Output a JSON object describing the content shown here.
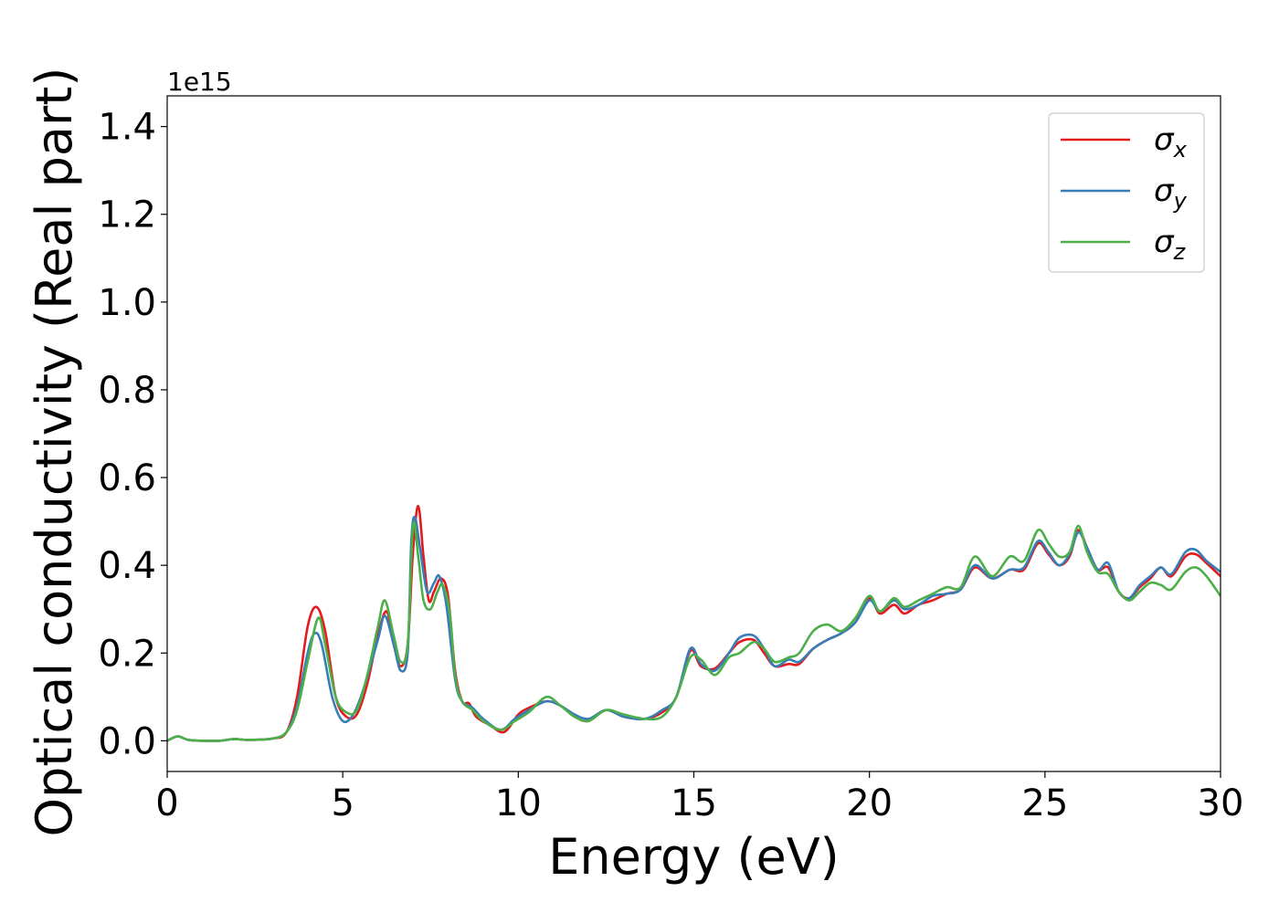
{
  "chart_data": {
    "type": "line",
    "title": "",
    "xlabel": "Energy (eV)",
    "ylabel": "Optical conductivity (Real part)",
    "y_offset_label": "1e15",
    "xlim": [
      0,
      30
    ],
    "ylim": [
      -0.07,
      1.47
    ],
    "x_ticks": [
      0,
      5,
      10,
      15,
      20,
      25,
      30
    ],
    "x_tick_labels": [
      "0",
      "5",
      "10",
      "15",
      "20",
      "25",
      "30"
    ],
    "y_ticks": [
      0.0,
      0.2,
      0.4,
      0.6,
      0.8,
      1.0,
      1.2,
      1.4
    ],
    "y_tick_labels": [
      "0.0",
      "0.2",
      "0.4",
      "0.6",
      "0.8",
      "1.0",
      "1.2",
      "1.4"
    ],
    "grid": false,
    "legend_position": "top-right",
    "series": [
      {
        "name": "σx",
        "label_base": "σ",
        "label_sub": "x",
        "color": "#e41a1c",
        "points": [
          [
            0,
            0.0
          ],
          [
            0.3,
            0.01
          ],
          [
            0.6,
            0.002
          ],
          [
            1.0,
            0.0
          ],
          [
            1.5,
            0.0
          ],
          [
            1.9,
            0.004
          ],
          [
            2.3,
            0.002
          ],
          [
            3.0,
            0.005
          ],
          [
            3.4,
            0.02
          ],
          [
            3.7,
            0.1
          ],
          [
            4.0,
            0.26
          ],
          [
            4.25,
            0.305
          ],
          [
            4.5,
            0.25
          ],
          [
            4.8,
            0.1
          ],
          [
            5.1,
            0.055
          ],
          [
            5.4,
            0.06
          ],
          [
            5.7,
            0.13
          ],
          [
            6.0,
            0.24
          ],
          [
            6.25,
            0.295
          ],
          [
            6.45,
            0.22
          ],
          [
            6.65,
            0.17
          ],
          [
            6.85,
            0.22
          ],
          [
            7.0,
            0.43
          ],
          [
            7.15,
            0.535
          ],
          [
            7.3,
            0.42
          ],
          [
            7.45,
            0.32
          ],
          [
            7.6,
            0.34
          ],
          [
            7.8,
            0.37
          ],
          [
            8.0,
            0.33
          ],
          [
            8.2,
            0.16
          ],
          [
            8.4,
            0.09
          ],
          [
            8.6,
            0.085
          ],
          [
            8.8,
            0.055
          ],
          [
            9.2,
            0.035
          ],
          [
            9.6,
            0.02
          ],
          [
            10.0,
            0.06
          ],
          [
            10.3,
            0.075
          ],
          [
            10.8,
            0.09
          ],
          [
            11.2,
            0.08
          ],
          [
            11.6,
            0.055
          ],
          [
            12.0,
            0.045
          ],
          [
            12.5,
            0.07
          ],
          [
            13.0,
            0.055
          ],
          [
            13.6,
            0.05
          ],
          [
            14.1,
            0.065
          ],
          [
            14.5,
            0.1
          ],
          [
            14.9,
            0.205
          ],
          [
            15.2,
            0.17
          ],
          [
            15.6,
            0.165
          ],
          [
            16.0,
            0.2
          ],
          [
            16.3,
            0.225
          ],
          [
            16.7,
            0.23
          ],
          [
            17.0,
            0.2
          ],
          [
            17.3,
            0.17
          ],
          [
            17.7,
            0.175
          ],
          [
            18.0,
            0.175
          ],
          [
            18.4,
            0.21
          ],
          [
            18.8,
            0.23
          ],
          [
            19.2,
            0.245
          ],
          [
            19.6,
            0.27
          ],
          [
            20.0,
            0.325
          ],
          [
            20.3,
            0.29
          ],
          [
            20.7,
            0.31
          ],
          [
            21.0,
            0.29
          ],
          [
            21.4,
            0.31
          ],
          [
            21.8,
            0.32
          ],
          [
            22.2,
            0.335
          ],
          [
            22.6,
            0.345
          ],
          [
            23.0,
            0.395
          ],
          [
            23.5,
            0.37
          ],
          [
            24.0,
            0.39
          ],
          [
            24.4,
            0.39
          ],
          [
            24.8,
            0.45
          ],
          [
            25.1,
            0.425
          ],
          [
            25.4,
            0.4
          ],
          [
            25.7,
            0.42
          ],
          [
            25.95,
            0.48
          ],
          [
            26.2,
            0.44
          ],
          [
            26.5,
            0.39
          ],
          [
            26.8,
            0.395
          ],
          [
            27.1,
            0.34
          ],
          [
            27.4,
            0.325
          ],
          [
            27.7,
            0.35
          ],
          [
            28.0,
            0.37
          ],
          [
            28.3,
            0.395
          ],
          [
            28.6,
            0.375
          ],
          [
            29.0,
            0.42
          ],
          [
            29.3,
            0.425
          ],
          [
            29.6,
            0.405
          ],
          [
            30.0,
            0.375
          ]
        ]
      },
      {
        "name": "σy",
        "label_base": "σ",
        "label_sub": "y",
        "color": "#377eb8",
        "points": [
          [
            0,
            0.0
          ],
          [
            0.3,
            0.01
          ],
          [
            0.6,
            0.002
          ],
          [
            1.0,
            0.0
          ],
          [
            1.5,
            0.0
          ],
          [
            1.9,
            0.004
          ],
          [
            2.3,
            0.002
          ],
          [
            3.0,
            0.005
          ],
          [
            3.4,
            0.02
          ],
          [
            3.7,
            0.08
          ],
          [
            4.0,
            0.2
          ],
          [
            4.2,
            0.245
          ],
          [
            4.4,
            0.22
          ],
          [
            4.7,
            0.1
          ],
          [
            5.0,
            0.045
          ],
          [
            5.3,
            0.06
          ],
          [
            5.6,
            0.12
          ],
          [
            6.0,
            0.23
          ],
          [
            6.2,
            0.285
          ],
          [
            6.45,
            0.22
          ],
          [
            6.65,
            0.16
          ],
          [
            6.85,
            0.2
          ],
          [
            6.95,
            0.45
          ],
          [
            7.05,
            0.51
          ],
          [
            7.2,
            0.44
          ],
          [
            7.4,
            0.34
          ],
          [
            7.6,
            0.36
          ],
          [
            7.75,
            0.375
          ],
          [
            7.95,
            0.31
          ],
          [
            8.2,
            0.14
          ],
          [
            8.4,
            0.09
          ],
          [
            8.7,
            0.075
          ],
          [
            9.0,
            0.05
          ],
          [
            9.5,
            0.025
          ],
          [
            9.9,
            0.05
          ],
          [
            10.3,
            0.07
          ],
          [
            10.8,
            0.09
          ],
          [
            11.2,
            0.08
          ],
          [
            11.6,
            0.06
          ],
          [
            12.0,
            0.05
          ],
          [
            12.5,
            0.07
          ],
          [
            13.0,
            0.055
          ],
          [
            13.6,
            0.05
          ],
          [
            14.1,
            0.07
          ],
          [
            14.5,
            0.1
          ],
          [
            14.9,
            0.21
          ],
          [
            15.2,
            0.175
          ],
          [
            15.6,
            0.16
          ],
          [
            16.0,
            0.2
          ],
          [
            16.3,
            0.235
          ],
          [
            16.7,
            0.24
          ],
          [
            17.0,
            0.21
          ],
          [
            17.3,
            0.17
          ],
          [
            17.7,
            0.185
          ],
          [
            18.0,
            0.18
          ],
          [
            18.4,
            0.21
          ],
          [
            18.8,
            0.23
          ],
          [
            19.2,
            0.245
          ],
          [
            19.6,
            0.27
          ],
          [
            20.0,
            0.32
          ],
          [
            20.3,
            0.295
          ],
          [
            20.7,
            0.32
          ],
          [
            21.0,
            0.3
          ],
          [
            21.4,
            0.31
          ],
          [
            21.8,
            0.33
          ],
          [
            22.2,
            0.335
          ],
          [
            22.6,
            0.345
          ],
          [
            23.0,
            0.4
          ],
          [
            23.5,
            0.37
          ],
          [
            24.0,
            0.39
          ],
          [
            24.4,
            0.395
          ],
          [
            24.8,
            0.455
          ],
          [
            25.1,
            0.43
          ],
          [
            25.4,
            0.4
          ],
          [
            25.7,
            0.425
          ],
          [
            25.95,
            0.475
          ],
          [
            26.2,
            0.44
          ],
          [
            26.5,
            0.39
          ],
          [
            26.8,
            0.405
          ],
          [
            27.1,
            0.34
          ],
          [
            27.4,
            0.325
          ],
          [
            27.7,
            0.355
          ],
          [
            28.0,
            0.375
          ],
          [
            28.3,
            0.395
          ],
          [
            28.6,
            0.38
          ],
          [
            29.0,
            0.43
          ],
          [
            29.3,
            0.435
          ],
          [
            29.6,
            0.41
          ],
          [
            30.0,
            0.385
          ]
        ]
      },
      {
        "name": "σz",
        "label_base": "σ",
        "label_sub": "z",
        "color": "#4daf4a",
        "points": [
          [
            0,
            0.0
          ],
          [
            0.3,
            0.01
          ],
          [
            0.6,
            0.002
          ],
          [
            1.0,
            0.0
          ],
          [
            1.5,
            0.0
          ],
          [
            1.9,
            0.004
          ],
          [
            2.3,
            0.002
          ],
          [
            3.0,
            0.005
          ],
          [
            3.4,
            0.02
          ],
          [
            3.7,
            0.07
          ],
          [
            4.0,
            0.18
          ],
          [
            4.3,
            0.28
          ],
          [
            4.5,
            0.22
          ],
          [
            4.8,
            0.1
          ],
          [
            5.1,
            0.065
          ],
          [
            5.4,
            0.07
          ],
          [
            5.7,
            0.15
          ],
          [
            6.0,
            0.26
          ],
          [
            6.2,
            0.32
          ],
          [
            6.45,
            0.24
          ],
          [
            6.65,
            0.18
          ],
          [
            6.85,
            0.22
          ],
          [
            7.0,
            0.49
          ],
          [
            7.15,
            0.42
          ],
          [
            7.3,
            0.32
          ],
          [
            7.5,
            0.3
          ],
          [
            7.7,
            0.34
          ],
          [
            7.85,
            0.355
          ],
          [
            8.05,
            0.29
          ],
          [
            8.2,
            0.15
          ],
          [
            8.4,
            0.09
          ],
          [
            8.7,
            0.07
          ],
          [
            9.0,
            0.045
          ],
          [
            9.5,
            0.025
          ],
          [
            9.9,
            0.045
          ],
          [
            10.3,
            0.065
          ],
          [
            10.8,
            0.1
          ],
          [
            11.2,
            0.08
          ],
          [
            11.6,
            0.055
          ],
          [
            12.0,
            0.045
          ],
          [
            12.5,
            0.07
          ],
          [
            13.0,
            0.06
          ],
          [
            13.6,
            0.05
          ],
          [
            14.1,
            0.055
          ],
          [
            14.5,
            0.1
          ],
          [
            14.9,
            0.19
          ],
          [
            15.2,
            0.185
          ],
          [
            15.6,
            0.15
          ],
          [
            16.0,
            0.19
          ],
          [
            16.3,
            0.2
          ],
          [
            16.7,
            0.225
          ],
          [
            17.0,
            0.21
          ],
          [
            17.3,
            0.18
          ],
          [
            17.7,
            0.19
          ],
          [
            18.0,
            0.2
          ],
          [
            18.4,
            0.25
          ],
          [
            18.8,
            0.265
          ],
          [
            19.2,
            0.25
          ],
          [
            19.6,
            0.28
          ],
          [
            20.0,
            0.33
          ],
          [
            20.3,
            0.295
          ],
          [
            20.7,
            0.325
          ],
          [
            21.0,
            0.305
          ],
          [
            21.4,
            0.32
          ],
          [
            21.8,
            0.335
          ],
          [
            22.2,
            0.35
          ],
          [
            22.6,
            0.35
          ],
          [
            23.0,
            0.42
          ],
          [
            23.5,
            0.375
          ],
          [
            24.0,
            0.42
          ],
          [
            24.4,
            0.41
          ],
          [
            24.8,
            0.48
          ],
          [
            25.1,
            0.45
          ],
          [
            25.4,
            0.42
          ],
          [
            25.7,
            0.43
          ],
          [
            25.95,
            0.49
          ],
          [
            26.2,
            0.43
          ],
          [
            26.5,
            0.385
          ],
          [
            26.8,
            0.38
          ],
          [
            27.1,
            0.34
          ],
          [
            27.4,
            0.32
          ],
          [
            27.7,
            0.34
          ],
          [
            28.0,
            0.36
          ],
          [
            28.3,
            0.355
          ],
          [
            28.6,
            0.345
          ],
          [
            29.0,
            0.385
          ],
          [
            29.3,
            0.395
          ],
          [
            29.6,
            0.375
          ],
          [
            30.0,
            0.33
          ]
        ]
      }
    ]
  }
}
